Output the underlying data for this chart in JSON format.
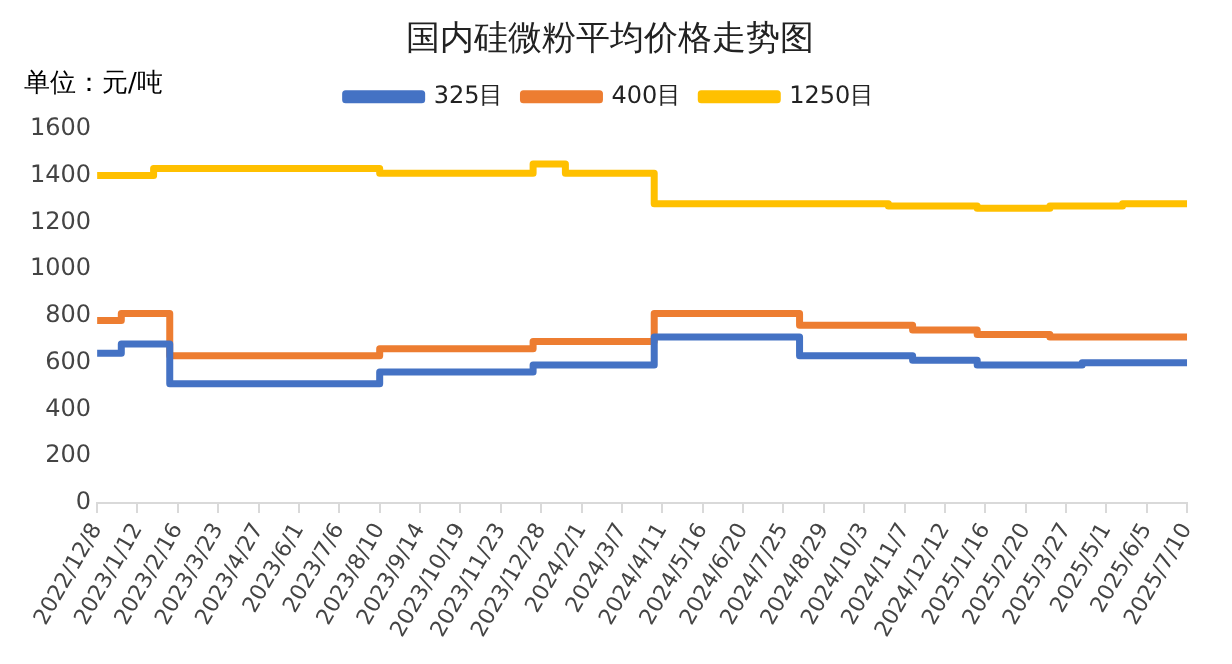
{
  "chart_data": {
    "type": "step",
    "title": "国内硅微粉平均价格走势图",
    "annotations": [
      "单位：元/吨"
    ],
    "legend": "top",
    "grid": false,
    "xlim": [
      "2022-12-08",
      "2025-07-10"
    ],
    "xticks": [
      {
        "value": "2022-12-08",
        "label": "2022/12/8"
      },
      {
        "value": "2023-01-12",
        "label": "2023/1/12"
      },
      {
        "value": "2023-02-16",
        "label": "2023/2/16"
      },
      {
        "value": "2023-03-23",
        "label": "2023/3/23"
      },
      {
        "value": "2023-04-27",
        "label": "2023/4/27"
      },
      {
        "value": "2023-06-01",
        "label": "2023/6/1"
      },
      {
        "value": "2023-07-06",
        "label": "2023/7/6"
      },
      {
        "value": "2023-08-10",
        "label": "2023/8/10"
      },
      {
        "value": "2023-09-14",
        "label": "2023/9/14"
      },
      {
        "value": "2023-10-19",
        "label": "2023/10/19"
      },
      {
        "value": "2023-11-23",
        "label": "2023/11/23"
      },
      {
        "value": "2023-12-28",
        "label": "2023/12/28"
      },
      {
        "value": "2024-02-01",
        "label": "2024/2/1"
      },
      {
        "value": "2024-03-07",
        "label": "2024/3/7"
      },
      {
        "value": "2024-04-11",
        "label": "2024/4/11"
      },
      {
        "value": "2024-05-16",
        "label": "2024/5/16"
      },
      {
        "value": "2024-06-20",
        "label": "2024/6/20"
      },
      {
        "value": "2024-07-25",
        "label": "2024/7/25"
      },
      {
        "value": "2024-08-29",
        "label": "2024/8/29"
      },
      {
        "value": "2024-10-03",
        "label": "2024/10/3"
      },
      {
        "value": "2024-11-07",
        "label": "2024/11/7"
      },
      {
        "value": "2024-12-12",
        "label": "2024/12/12"
      },
      {
        "value": "2025-01-16",
        "label": "2025/1/16"
      },
      {
        "value": "2025-02-20",
        "label": "2025/2/20"
      },
      {
        "value": "2025-03-27",
        "label": "2025/3/27"
      },
      {
        "value": "2025-05-01",
        "label": "2025/5/1"
      },
      {
        "value": "2025-06-05",
        "label": "2025/6/5"
      },
      {
        "value": "2025-07-10",
        "label": "2025/7/10"
      }
    ],
    "ylim": [
      0,
      1600
    ],
    "yticks": [
      0,
      200,
      400,
      600,
      800,
      1000,
      1200,
      1400,
      1600
    ],
    "series": [
      {
        "name": "325目",
        "color": "#4472c4",
        "x": [
          "2022-12-08",
          "2022-12-29",
          "2023-02-09",
          "2023-08-10",
          "2023-12-21",
          "2024-04-04",
          "2024-08-08",
          "2024-11-14",
          "2025-01-09",
          "2025-04-10",
          "2025-07-10"
        ],
        "values": [
          640,
          680,
          510,
          560,
          590,
          710,
          630,
          610,
          590,
          600,
          600
        ]
      },
      {
        "name": "400目",
        "color": "#ed7d31",
        "x": [
          "2022-12-08",
          "2022-12-29",
          "2023-02-09",
          "2023-08-10",
          "2023-12-21",
          "2024-04-04",
          "2024-08-08",
          "2024-11-14",
          "2025-01-09",
          "2025-03-13",
          "2025-07-10"
        ],
        "values": [
          780,
          810,
          630,
          660,
          690,
          810,
          760,
          740,
          720,
          710,
          710
        ]
      },
      {
        "name": "1250目",
        "color": "#ffc000",
        "x": [
          "2022-12-08",
          "2023-01-26",
          "2023-08-10",
          "2023-12-21",
          "2024-01-18",
          "2024-04-04",
          "2024-10-24",
          "2025-01-09",
          "2025-03-13",
          "2025-05-15",
          "2025-07-10"
        ],
        "values": [
          1400,
          1430,
          1410,
          1450,
          1410,
          1280,
          1270,
          1260,
          1270,
          1280,
          1280
        ]
      }
    ]
  }
}
